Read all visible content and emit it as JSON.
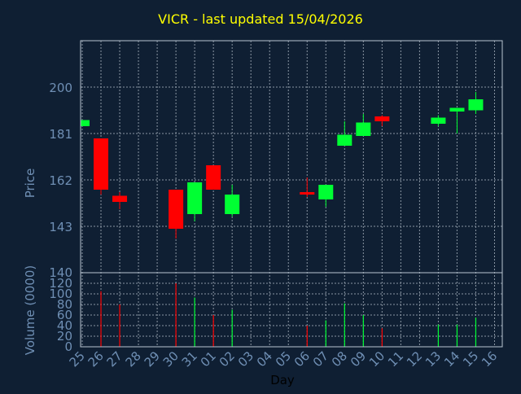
{
  "colors": {
    "background": "#0f1f33",
    "plot_border": "#b8c4d0",
    "grid": "#8a96a3",
    "title": "#ffff00",
    "axis_text": "#6f8fb4",
    "up": "#00ff33",
    "down": "#ff0000"
  },
  "chart_data": [
    {
      "type": "candlestick",
      "title": "VICR - last updated 15/04/2026",
      "ylabel": "Price",
      "xlabel": "Day",
      "ylim": [
        124,
        219
      ],
      "yticks": [
        143,
        162,
        181,
        200
      ],
      "grid": true,
      "categories": [
        "25",
        "26",
        "27",
        "28",
        "29",
        "30",
        "31",
        "01",
        "02",
        "03",
        "04",
        "05",
        "06",
        "07",
        "08",
        "09",
        "10",
        "11",
        "12",
        "13",
        "14",
        "15",
        "16"
      ],
      "candles": [
        {
          "day": "25",
          "open": 184,
          "close": 186.5,
          "high": 186.5,
          "low": 184
        },
        {
          "day": "26",
          "open": 179,
          "close": 158,
          "high": 179,
          "low": 156
        },
        {
          "day": "27",
          "open": 155.5,
          "close": 153,
          "high": 157,
          "low": 150
        },
        {
          "day": "30",
          "open": 158,
          "close": 142,
          "high": 158,
          "low": 138
        },
        {
          "day": "31",
          "open": 148,
          "close": 161,
          "high": 161,
          "low": 145
        },
        {
          "day": "01",
          "open": 168,
          "close": 158,
          "high": 168,
          "low": 158
        },
        {
          "day": "02",
          "open": 148,
          "close": 156,
          "high": 160,
          "low": 147
        },
        {
          "day": "06",
          "open": 157,
          "close": 156,
          "high": 163,
          "low": 155
        },
        {
          "day": "07",
          "open": 154,
          "close": 160,
          "high": 160,
          "low": 151
        },
        {
          "day": "08",
          "open": 176,
          "close": 180.5,
          "high": 186,
          "low": 176
        },
        {
          "day": "09",
          "open": 180,
          "close": 185.5,
          "high": 189,
          "low": 180
        },
        {
          "day": "10",
          "open": 188,
          "close": 186,
          "high": 188.5,
          "low": 184
        },
        {
          "day": "13",
          "open": 185,
          "close": 187.5,
          "high": 188.5,
          "low": 184
        },
        {
          "day": "14",
          "open": 190,
          "close": 191.5,
          "high": 191.5,
          "low": 181
        },
        {
          "day": "15",
          "open": 190.5,
          "close": 195,
          "high": 198,
          "low": 189
        }
      ]
    },
    {
      "type": "bar",
      "ylabel": "Volume (0000)",
      "ylim": [
        0,
        140
      ],
      "yticks": [
        0,
        20,
        40,
        60,
        80,
        100,
        120,
        140
      ],
      "grid": true,
      "volumes": [
        {
          "day": "26",
          "value": 105,
          "direction": "down"
        },
        {
          "day": "27",
          "value": 80,
          "direction": "down"
        },
        {
          "day": "30",
          "value": 120,
          "direction": "down"
        },
        {
          "day": "31",
          "value": 93,
          "direction": "up"
        },
        {
          "day": "01",
          "value": 60,
          "direction": "down"
        },
        {
          "day": "02",
          "value": 70,
          "direction": "up"
        },
        {
          "day": "06",
          "value": 40,
          "direction": "down"
        },
        {
          "day": "07",
          "value": 50,
          "direction": "up"
        },
        {
          "day": "08",
          "value": 82,
          "direction": "up"
        },
        {
          "day": "09",
          "value": 60,
          "direction": "up"
        },
        {
          "day": "10",
          "value": 35,
          "direction": "down"
        },
        {
          "day": "13",
          "value": 42,
          "direction": "up"
        },
        {
          "day": "14",
          "value": 42,
          "direction": "up"
        },
        {
          "day": "15",
          "value": 55,
          "direction": "up"
        }
      ]
    }
  ]
}
